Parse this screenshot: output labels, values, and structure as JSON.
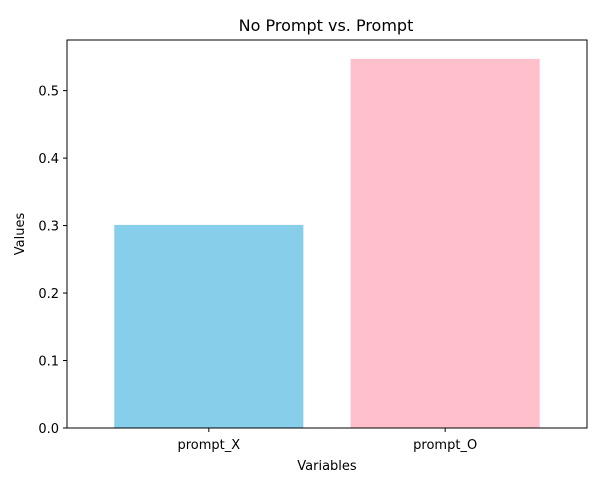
{
  "chart_data": {
    "type": "bar",
    "title": "No Prompt vs. Prompt",
    "xlabel": "Variables",
    "ylabel": "Values",
    "categories": [
      "prompt_X",
      "prompt_O"
    ],
    "values": [
      0.301,
      0.547
    ],
    "colors": [
      "#87CEEB",
      "#FFC0CB"
    ],
    "ylim": [
      0,
      0.575
    ],
    "yticks": [
      0.0,
      0.1,
      0.2,
      0.3,
      0.4,
      0.5
    ],
    "ytick_labels": [
      "0.0",
      "0.1",
      "0.2",
      "0.3",
      "0.4",
      "0.5"
    ],
    "grid": false,
    "legend": "none"
  }
}
